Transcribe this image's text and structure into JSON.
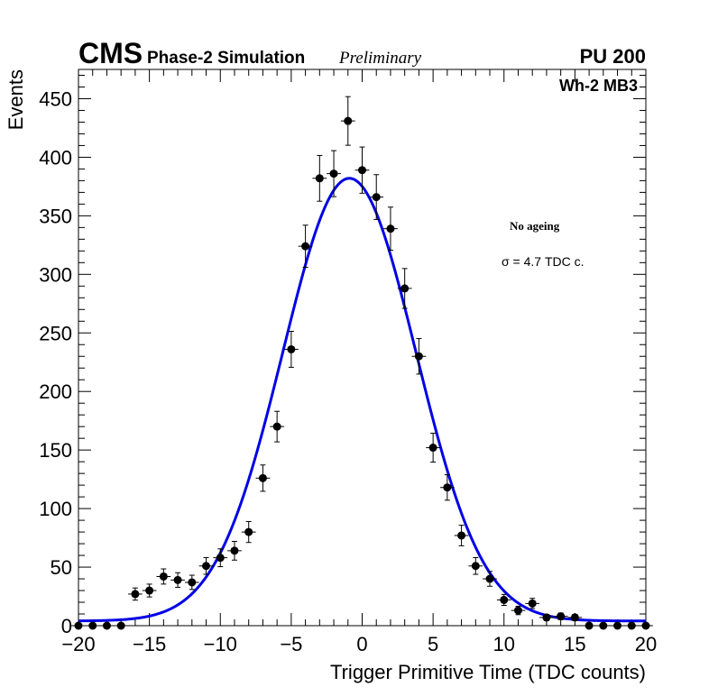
{
  "header": {
    "experiment": "CMS",
    "subtitle": "Phase-2 Simulation",
    "status": "Preliminary",
    "pileup": "PU 200"
  },
  "chart_data": {
    "type": "scatter",
    "title": "Wh-2 MB3",
    "xlabel": "Trigger Primitive Time (TDC counts)",
    "ylabel": "Events",
    "xlim": [
      -20,
      20
    ],
    "ylim": [
      0,
      475
    ],
    "x_ticks": [
      "−20",
      "−15",
      "−10",
      "−5",
      "0",
      "5",
      "10",
      "15",
      "20"
    ],
    "y_ticks": [
      "0",
      "50",
      "100",
      "150",
      "200",
      "250",
      "300",
      "350",
      "400",
      "450"
    ],
    "annotations": [
      "No ageing",
      "σ = 4.7 TDC c."
    ],
    "colors": {
      "fit": "#0000e6",
      "points": "#000000"
    },
    "series": [
      {
        "name": "data",
        "x": [
          -20,
          -19,
          -18,
          -17,
          -16,
          -15,
          -14,
          -13,
          -12,
          -11,
          -10,
          -9,
          -8,
          -7,
          -6,
          -5,
          -4,
          -3,
          -2,
          -1,
          0,
          1,
          2,
          3,
          4,
          5,
          6,
          7,
          8,
          9,
          10,
          11,
          12,
          13,
          14,
          15,
          16,
          17,
          18,
          19,
          20
        ],
        "values": [
          0,
          0,
          0,
          0,
          27,
          30,
          42,
          39,
          37,
          51,
          58,
          64,
          80,
          126,
          170,
          236,
          324,
          382,
          386,
          431,
          389,
          366,
          339,
          288,
          230,
          152,
          118,
          77,
          51,
          40,
          22,
          13,
          19,
          7,
          8,
          7,
          0,
          0,
          0,
          0,
          0
        ]
      },
      {
        "name": "Gaussian fit",
        "mean": -0.9,
        "sigma": 4.7,
        "amplitude": 378,
        "baseline": 4
      }
    ]
  }
}
